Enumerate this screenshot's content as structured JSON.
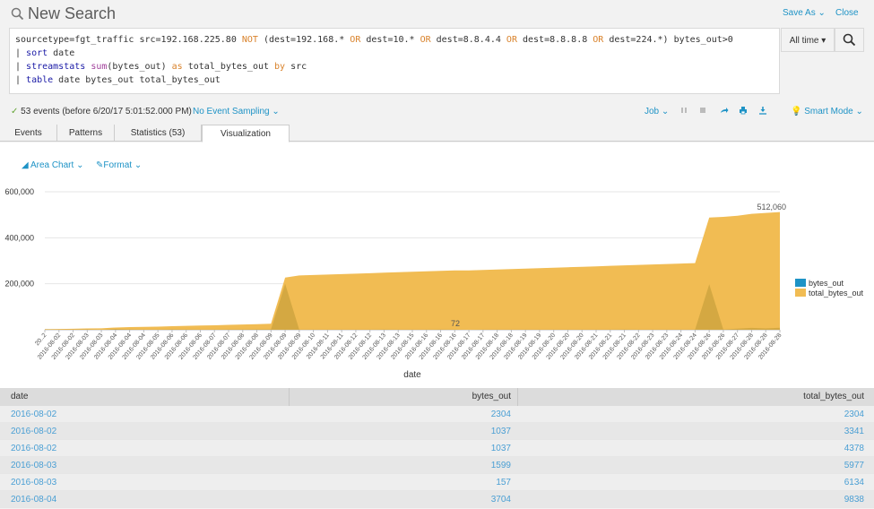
{
  "header": {
    "title": "New Search",
    "save_as": "Save As",
    "close": "Close"
  },
  "search": {
    "line1_a": "sourcetype=fgt_traffic src=192.168.225.80 ",
    "line1_not": "NOT",
    "line1_b": " (dest=192.168.* ",
    "or": "OR",
    "line1_c": " dest=10.* ",
    "line1_d": " dest=8.8.4.4 ",
    "line1_e": " dest=8.8.8.8 ",
    "line1_f": " dest=224.*) bytes_out>0",
    "pipe": "| ",
    "sort_cmd": "sort",
    "sort_arg": " date",
    "stats_cmd": "streamstats",
    "stats_fn": "sum",
    "stats_arg": "(bytes_out) ",
    "as_kw": "as",
    "stats_as": " total_bytes_out ",
    "by_kw": "by",
    "stats_by": " src",
    "table_cmd": "table",
    "table_arg": " date bytes_out total_bytes_out",
    "time_range": "All time ▾"
  },
  "status": {
    "events": "53 events (before 6/20/17 5:01:52.000 PM)",
    "sampling": "No Event Sampling",
    "job": "Job",
    "mode": "Smart Mode"
  },
  "tabs": [
    "Events",
    "Patterns",
    "Statistics (53)",
    "Visualization"
  ],
  "viz": {
    "chart_type_label": "Area Chart",
    "format_label": "Format"
  },
  "chart_data": {
    "type": "area",
    "xlabel": "date",
    "ylabel": "",
    "ylim": [
      0,
      600000
    ],
    "yticks": [
      "600,000",
      "400,000",
      "200,000"
    ],
    "legend": "right",
    "x": [
      "2016-08-02",
      "2016-08-02",
      "2016-08-02",
      "2016-08-03",
      "2016-08-03",
      "2016-08-04",
      "2016-08-04",
      "2016-08-04",
      "2016-08-04",
      "2016-08-05",
      "2016-08-06",
      "2016-08-06",
      "2016-08-06",
      "2016-08-07",
      "2016-08-07",
      "2016-08-08",
      "2016-08-08",
      "2016-08-09",
      "2016-08-09",
      "2016-08-09",
      "2016-08-10",
      "2016-08-11",
      "2016-08-12",
      "2016-08-12",
      "2016-08-13",
      "2016-08-13",
      "2016-08-15",
      "2016-08-16",
      "2016-08-16",
      "2016-08-16",
      "2016-08-17",
      "2016-08-17",
      "2016-08-18",
      "2016-08-18",
      "2016-08-19",
      "2016-08-19",
      "2016-08-20",
      "2016-08-20",
      "2016-08-20",
      "2016-08-21",
      "2016-08-21",
      "2016-08-21",
      "2016-08-22",
      "2016-08-23",
      "2016-08-23",
      "2016-08-24",
      "2016-08-24",
      "2016-08-26",
      "2016-08-26",
      "2016-08-27",
      "2016-08-28",
      "2016-08-28",
      "2016-08-28"
    ],
    "series": [
      {
        "name": "bytes_out",
        "color": "#1e93c6",
        "values": [
          2304,
          1037,
          1037,
          1599,
          157,
          3704,
          1800,
          900,
          1200,
          2000,
          1500,
          1100,
          1300,
          1700,
          1600,
          1800,
          1900,
          200000,
          800,
          600,
          1200,
          900,
          1000,
          1100,
          1400,
          1200,
          900,
          1300,
          1500,
          1100,
          72,
          1000,
          1200,
          900,
          1100,
          1000,
          1300,
          1200,
          1100,
          900,
          1000,
          1400,
          1200,
          1100,
          1000,
          1300,
          1200,
          198000,
          1500,
          5000,
          8000,
          6000,
          9000
        ]
      },
      {
        "name": "total_bytes_out",
        "color": "#f1bc53",
        "values": [
          2304,
          3341,
          4378,
          5977,
          6134,
          9838,
          11638,
          12538,
          13738,
          15738,
          17238,
          18338,
          19638,
          21338,
          22938,
          24738,
          26638,
          226638,
          236000,
          238000,
          240000,
          242000,
          244000,
          246000,
          248000,
          250000,
          252000,
          254000,
          256000,
          258000,
          258072,
          260000,
          262000,
          264000,
          266000,
          268000,
          270000,
          272000,
          274000,
          276000,
          278000,
          280000,
          282000,
          284000,
          286000,
          288000,
          290000,
          488000,
          491000,
          496000,
          504000,
          508000,
          512060
        ]
      }
    ],
    "annotations": [
      "512,060",
      "72"
    ],
    "tick_labels": [
      "20..2",
      "2016-08-02",
      "2016-08-02",
      "2016-08-03",
      "2016-08-03",
      "2016-08-04",
      "2016-08-04",
      "2016-08-04",
      "2016-08-05",
      "2016-08-06",
      "2016-08-06",
      "2016-08-06",
      "2016-08-07",
      "2016-08-07",
      "2016-08-08",
      "2016-08-08",
      "2016-08-09",
      "2016-08-09",
      "2016-08-09",
      "2016-08-10",
      "2016-08-11",
      "2016-08-11",
      "2016-08-12",
      "2016-08-12",
      "2016-08-13",
      "2016-08-13",
      "2016-08-15",
      "2016-08-16",
      "2016-08-16",
      "2016-08-16",
      "2016-08-17",
      "2016-08-17",
      "2016-08-18",
      "2016-08-18",
      "2016-08-19",
      "2016-08-19",
      "2016-08-20",
      "2016-08-20",
      "2016-08-20",
      "2016-08-21",
      "2016-08-21",
      "2016-08-21",
      "2016-08-22",
      "2016-08-23",
      "2016-08-23",
      "2016-08-24",
      "2016-08-24",
      "2016-08-26",
      "2016-08-26",
      "2016-08-27",
      "2016-08-28",
      "2016-08-28",
      "2016-08-28"
    ]
  },
  "table": {
    "headers": [
      "date",
      "bytes_out",
      "total_bytes_out"
    ],
    "rows": [
      [
        "2016-08-02",
        "2304",
        "2304"
      ],
      [
        "2016-08-02",
        "1037",
        "3341"
      ],
      [
        "2016-08-02",
        "1037",
        "4378"
      ],
      [
        "2016-08-03",
        "1599",
        "5977"
      ],
      [
        "2016-08-03",
        "157",
        "6134"
      ],
      [
        "2016-08-04",
        "3704",
        "9838"
      ]
    ]
  }
}
